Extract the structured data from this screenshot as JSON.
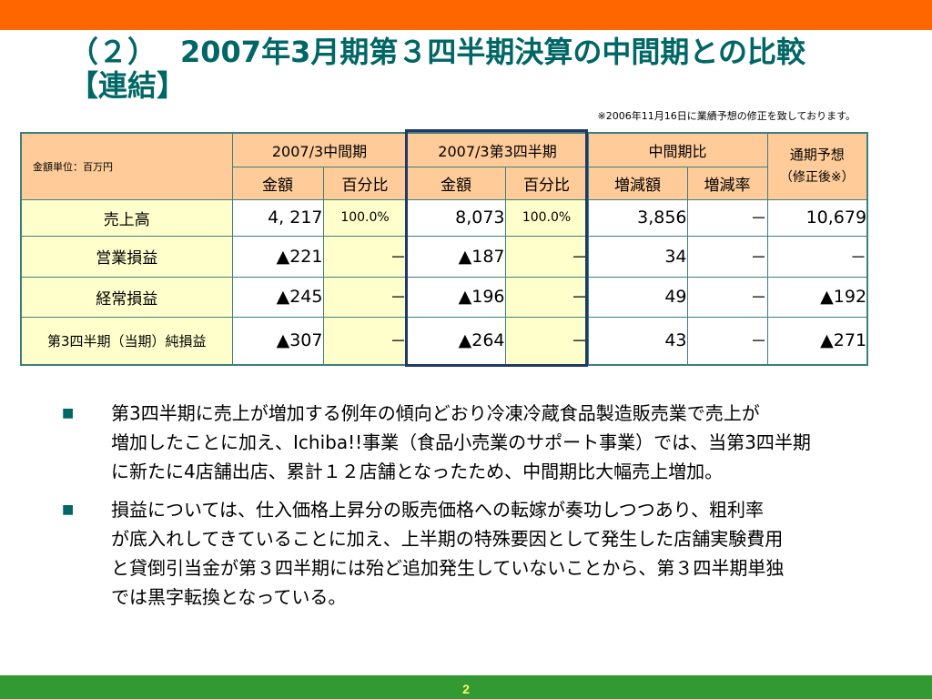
{
  "colors": {
    "top_bar": "#FF6600",
    "bottom_bar": "#339933",
    "title": "#006666",
    "header_fill": "#FFCC99",
    "label_fill": "#FFFFCC",
    "highlight_frame": "#1F3A68",
    "page_number": "#FFFF66"
  },
  "title": {
    "number": "（２）",
    "text": "2007年3月期第３四半期決算の中間期との比較",
    "subtitle": "【連結】"
  },
  "note": "※2006年11月16日に業績予想の修正を致しております。",
  "table": {
    "unit_label": "金額単位：百万円",
    "group_headers": [
      "2007/3中間期",
      "2007/3第3四半期",
      "中間期比"
    ],
    "forecast_header": [
      "通期予想",
      "（修正後※）"
    ],
    "sub_headers": [
      "金額",
      "百分比",
      "金額",
      "百分比",
      "増減額",
      "増減率"
    ],
    "rows": [
      {
        "label": "売上高",
        "values": [
          "4, 217",
          "100.0%",
          "8,073",
          "100.0%",
          "3,856",
          "－",
          "10,679"
        ]
      },
      {
        "label": "営業損益",
        "values": [
          "▲221",
          "－",
          "▲187",
          "－",
          "34",
          "－",
          "－"
        ]
      },
      {
        "label": "経常損益",
        "values": [
          "▲245",
          "－",
          "▲196",
          "－",
          "49",
          "－",
          "▲192"
        ]
      },
      {
        "label": "第3四半期（当期）純損益",
        "values": [
          "▲307",
          "－",
          "▲264",
          "－",
          "43",
          "－",
          "▲271"
        ]
      }
    ]
  },
  "bullets": [
    {
      "lines": [
        "第3四半期に売上が増加する例年の傾向どおり冷凍冷蔵食品製造販売業で売上が",
        "増加したことに加え、Ichiba!!事業（食品小売業のサポート事業）では、当第3四半期",
        "に新たに4店舗出店、累計１２店舗となったため、中間期比大幅売上増加。"
      ]
    },
    {
      "lines": [
        "損益については、仕入価格上昇分の販売価格への転嫁が奏功しつつあり、粗利率",
        "が底入れしてきていることに加え、上半期の特殊要因として発生した店舗実験費用",
        "と貸倒引当金が第３四半期には殆ど追加発生していないことから、第３四半期単独",
        "では黒字転換となっている。"
      ]
    }
  ],
  "footer": {
    "page_number": "2"
  }
}
